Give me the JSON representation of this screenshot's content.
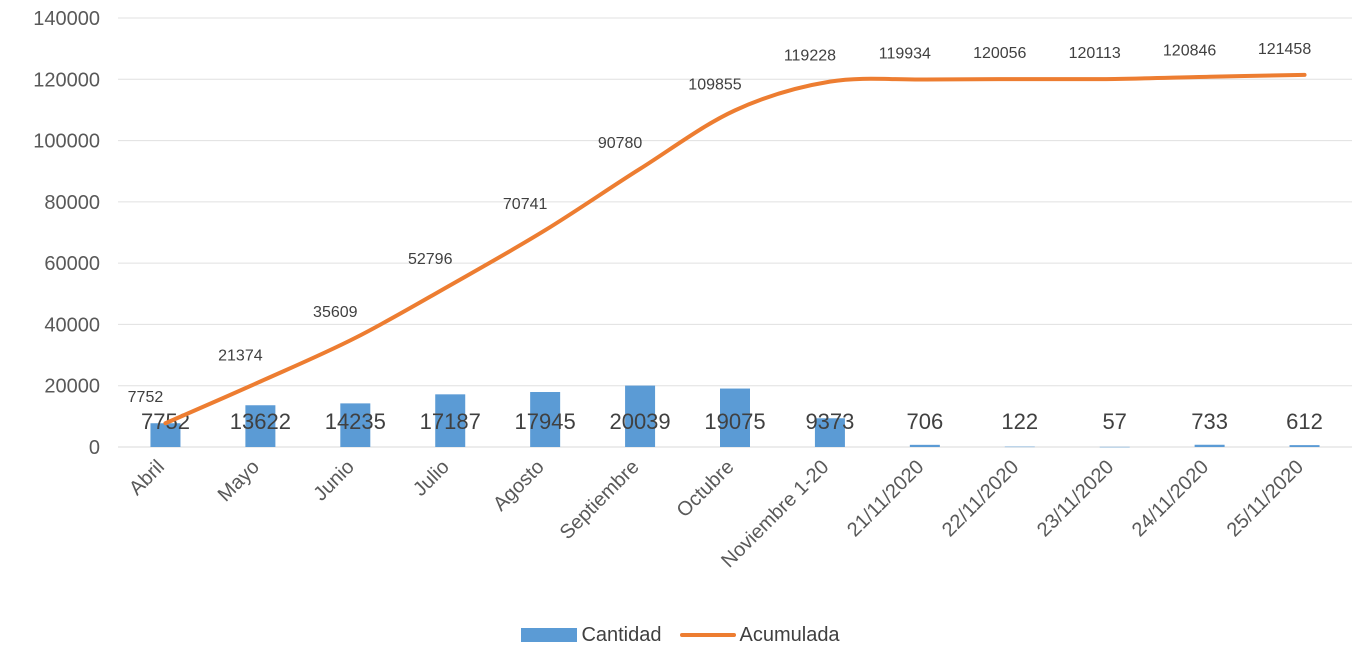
{
  "chart_data": {
    "type": "bar",
    "categories": [
      "Abril",
      "Mayo",
      "Junio",
      "Julio",
      "Agosto",
      "Septiembre",
      "Octubre",
      "Noviembre 1-20",
      "21/11/2020",
      "22/11/2020",
      "23/11/2020",
      "24/11/2020",
      "25/11/2020"
    ],
    "series": [
      {
        "name": "Cantidad",
        "type": "bar",
        "color": "#5B9BD5",
        "values": [
          7752,
          13622,
          14235,
          17187,
          17945,
          20039,
          19075,
          9373,
          706,
          122,
          57,
          733,
          612
        ]
      },
      {
        "name": "Acumulada",
        "type": "line",
        "color": "#ED7D31",
        "values": [
          7752,
          21374,
          35609,
          52796,
          70741,
          90780,
          109855,
          119228,
          119934,
          120056,
          120113,
          120846,
          121458
        ]
      }
    ],
    "ylim": [
      0,
      140000
    ],
    "yticks": [
      "0",
      "20000",
      "40000",
      "60000",
      "80000",
      "100000",
      "120000",
      "140000"
    ],
    "grid": true,
    "legend": "bottom",
    "title": "",
    "xlabel": "",
    "ylabel": ""
  }
}
